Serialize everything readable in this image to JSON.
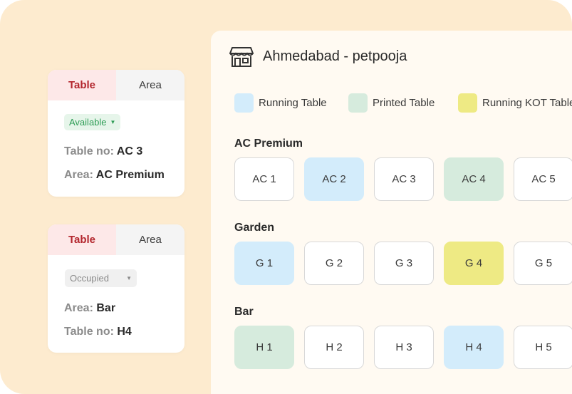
{
  "card_top": {
    "tabs": [
      "Table",
      "Area"
    ],
    "status": "Available",
    "line1_label": "Table no:",
    "line1_value": "AC 3",
    "line2_label": "Area:",
    "line2_value": "AC Premium"
  },
  "card_bottom": {
    "tabs": [
      "Table",
      "Area"
    ],
    "status": "Occupied",
    "line1_label": "Area:",
    "line1_value": "Bar",
    "line2_label": "Table no:",
    "line2_value": "H4"
  },
  "panel": {
    "outlet_name": "Ahmedabad - petpooja",
    "legend": [
      {
        "label": "Running Table",
        "color": "#d3ecfb"
      },
      {
        "label": "Printed Table",
        "color": "#d6ebdd"
      },
      {
        "label": "Running KOT Table",
        "color": "#eeea84"
      }
    ],
    "sections": [
      {
        "title": "AC Premium",
        "tables": [
          {
            "label": "AC 1",
            "state": "empty"
          },
          {
            "label": "AC 2",
            "state": "running"
          },
          {
            "label": "AC 3",
            "state": "empty"
          },
          {
            "label": "AC 4",
            "state": "printed"
          },
          {
            "label": "AC 5",
            "state": "empty"
          }
        ]
      },
      {
        "title": "Garden",
        "tables": [
          {
            "label": "G 1",
            "state": "running"
          },
          {
            "label": "G 2",
            "state": "empty"
          },
          {
            "label": "G 3",
            "state": "empty"
          },
          {
            "label": "G 4",
            "state": "kot"
          },
          {
            "label": "G 5",
            "state": "empty"
          }
        ]
      },
      {
        "title": "Bar",
        "tables": [
          {
            "label": "H 1",
            "state": "printed"
          },
          {
            "label": "H 2",
            "state": "empty"
          },
          {
            "label": "H 3",
            "state": "empty"
          },
          {
            "label": "H 4",
            "state": "running"
          },
          {
            "label": "H 5",
            "state": "empty"
          }
        ]
      }
    ]
  }
}
